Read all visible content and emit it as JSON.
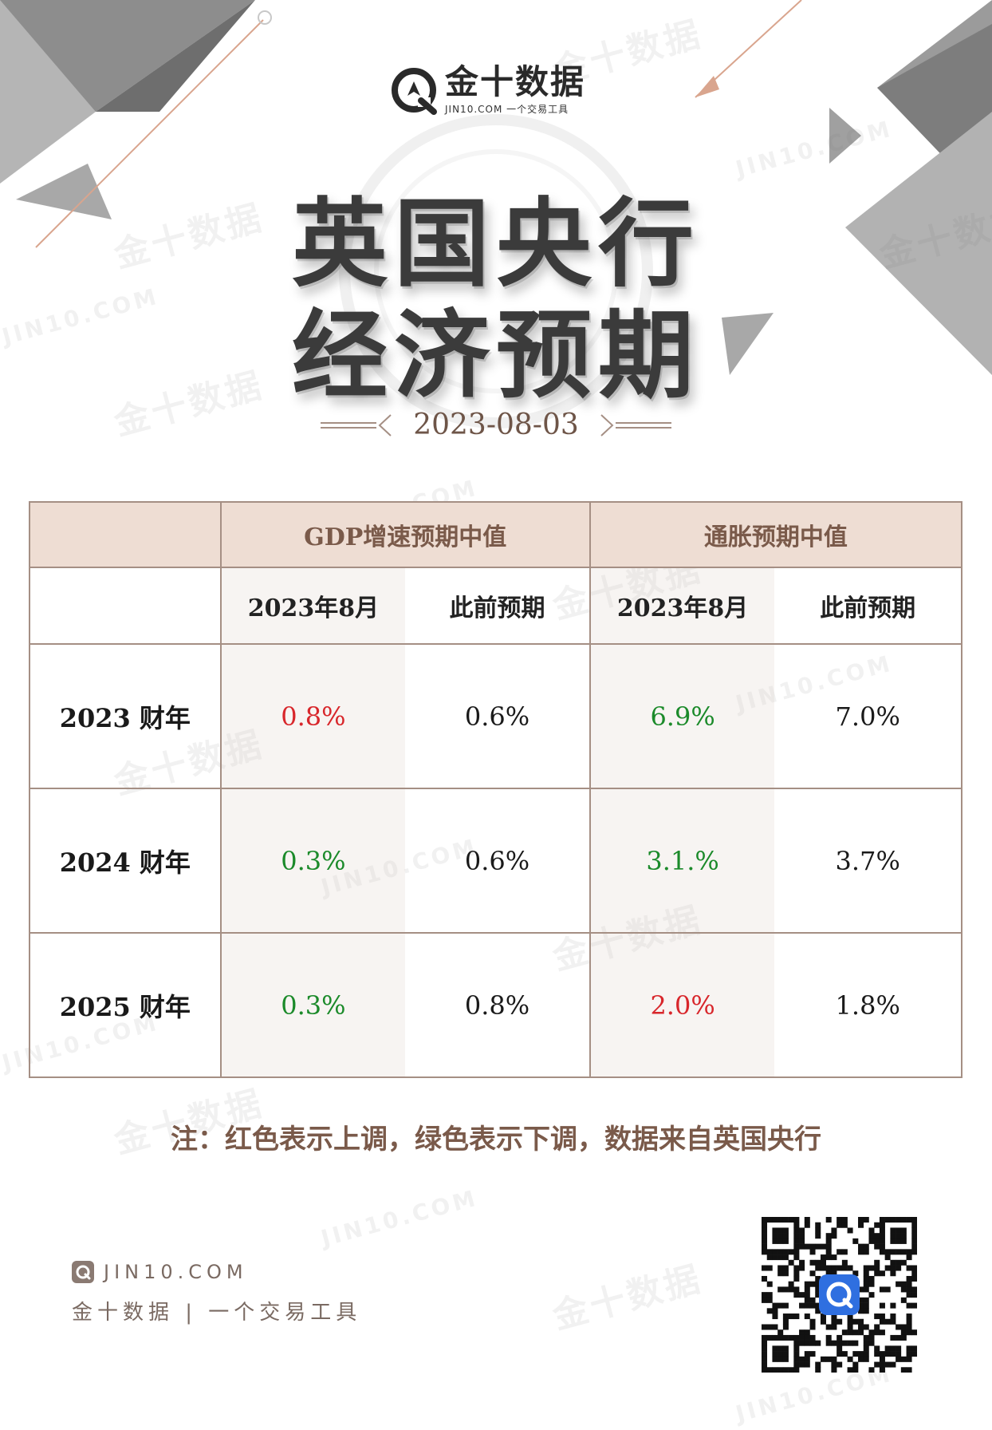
{
  "brand": {
    "name": "金十数据",
    "sub": "JIN10.COM 一个交易工具"
  },
  "title": {
    "line1": "英国央行",
    "line2": "经济预期"
  },
  "date": "2023-08-03",
  "table": {
    "group_headers": [
      "GDP增速预期中值",
      "通胀预期中值"
    ],
    "sub_headers": [
      "2023年8月",
      "此前预期",
      "2023年8月",
      "此前预期"
    ],
    "rows": [
      {
        "label": "2023 财年",
        "cells": [
          {
            "text": "0.8%",
            "status": "up"
          },
          {
            "text": "0.6%",
            "status": "none"
          },
          {
            "text": "6.9%",
            "status": "down"
          },
          {
            "text": "7.0%",
            "status": "none"
          }
        ]
      },
      {
        "label": "2024 财年",
        "cells": [
          {
            "text": "0.3%",
            "status": "down"
          },
          {
            "text": "0.6%",
            "status": "none"
          },
          {
            "text": "3.1.%",
            "status": "down"
          },
          {
            "text": "3.7%",
            "status": "none"
          }
        ]
      },
      {
        "label": "2025 财年",
        "cells": [
          {
            "text": "0.3%",
            "status": "down"
          },
          {
            "text": "0.8%",
            "status": "none"
          },
          {
            "text": "2.0%",
            "status": "up"
          },
          {
            "text": "1.8%",
            "status": "none"
          }
        ]
      }
    ]
  },
  "note": "注：红色表示上调，绿色表示下调，数据来自英国央行",
  "footer": {
    "site": "JIN10.COM",
    "slogan": "金十数据 | 一个交易工具"
  },
  "watermark": {
    "cn": "金十数据",
    "en": "JIN10.COM"
  },
  "colors": {
    "up": "#d8262b",
    "down": "#1b8a2a",
    "header_bg": "#eeddd3",
    "border": "#a58f84",
    "accent_brown": "#7a5a4a",
    "qr_center": "#2f6fe0"
  },
  "icons": [
    "jin10-logo-icon",
    "qr-code-icon"
  ]
}
